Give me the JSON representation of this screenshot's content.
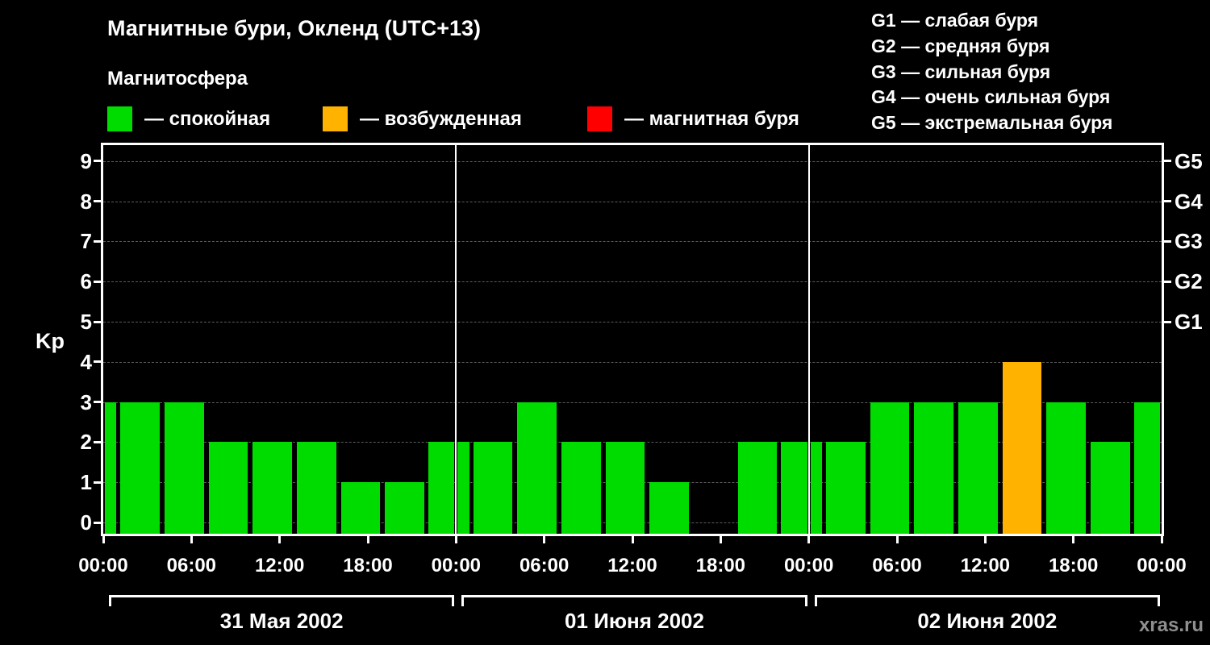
{
  "title": "Магнитные бури, Окленд (UTC+13)",
  "subtitle": "Магнитосфера",
  "legend": {
    "items": [
      {
        "key": "quiet",
        "label": "— спокойная",
        "color": "#00dc00"
      },
      {
        "key": "excited",
        "label": "— возбужденная",
        "color": "#ffb300"
      },
      {
        "key": "storm",
        "label": "— магнитная буря",
        "color": "#ff0000"
      }
    ]
  },
  "g_legend": [
    "G1 — слабая буря",
    "G2 — средняя буря",
    "G3 — сильная буря",
    "G4 — очень сильная буря",
    "G5 — экстремальная буря"
  ],
  "watermark": "xras.ru",
  "chart_data": {
    "type": "bar",
    "title": "Магнитные бури, Окленд (UTC+13)",
    "ylabel": "Kp",
    "ylim": [
      0,
      9.7
    ],
    "yticks": [
      0,
      1,
      2,
      3,
      4,
      5,
      6,
      7,
      8,
      9
    ],
    "grid": true,
    "right_axis": [
      {
        "kp": 5,
        "label": "G1"
      },
      {
        "kp": 6,
        "label": "G2"
      },
      {
        "kp": 7,
        "label": "G3"
      },
      {
        "kp": 8,
        "label": "G4"
      },
      {
        "kp": 9,
        "label": "G5"
      }
    ],
    "x_total_hours": 72,
    "xticks": [
      {
        "hour": 0,
        "label": "00:00"
      },
      {
        "hour": 6,
        "label": "06:00"
      },
      {
        "hour": 12,
        "label": "12:00"
      },
      {
        "hour": 18,
        "label": "18:00"
      },
      {
        "hour": 24,
        "label": "00:00"
      },
      {
        "hour": 30,
        "label": "06:00"
      },
      {
        "hour": 36,
        "label": "12:00"
      },
      {
        "hour": 42,
        "label": "18:00"
      },
      {
        "hour": 48,
        "label": "00:00"
      },
      {
        "hour": 54,
        "label": "06:00"
      },
      {
        "hour": 60,
        "label": "12:00"
      },
      {
        "hour": 66,
        "label": "18:00"
      },
      {
        "hour": 72,
        "label": "00:00"
      }
    ],
    "day_boundaries_hours": [
      24,
      48
    ],
    "days": [
      {
        "label": "31 Мая 2002",
        "start_hour": 0,
        "end_hour": 24
      },
      {
        "label": "01 Июня 2002",
        "start_hour": 24,
        "end_hour": 48
      },
      {
        "label": "02 Июня 2002",
        "start_hour": 48,
        "end_hour": 72
      }
    ],
    "bars": [
      {
        "start_hour": 0,
        "duration_hours": 1,
        "kp": 3
      },
      {
        "start_hour": 1,
        "duration_hours": 3,
        "kp": 3
      },
      {
        "start_hour": 4,
        "duration_hours": 3,
        "kp": 3
      },
      {
        "start_hour": 7,
        "duration_hours": 3,
        "kp": 2
      },
      {
        "start_hour": 10,
        "duration_hours": 3,
        "kp": 2
      },
      {
        "start_hour": 13,
        "duration_hours": 3,
        "kp": 2
      },
      {
        "start_hour": 16,
        "duration_hours": 3,
        "kp": 1
      },
      {
        "start_hour": 19,
        "duration_hours": 3,
        "kp": 1
      },
      {
        "start_hour": 22,
        "duration_hours": 2,
        "kp": 2
      },
      {
        "start_hour": 24,
        "duration_hours": 1,
        "kp": 2
      },
      {
        "start_hour": 25,
        "duration_hours": 3,
        "kp": 2
      },
      {
        "start_hour": 28,
        "duration_hours": 3,
        "kp": 3
      },
      {
        "start_hour": 31,
        "duration_hours": 3,
        "kp": 2
      },
      {
        "start_hour": 34,
        "duration_hours": 3,
        "kp": 2
      },
      {
        "start_hour": 37,
        "duration_hours": 3,
        "kp": 1
      },
      {
        "start_hour": 40,
        "duration_hours": 3,
        "kp": 0
      },
      {
        "start_hour": 43,
        "duration_hours": 3,
        "kp": 2
      },
      {
        "start_hour": 46,
        "duration_hours": 2,
        "kp": 2
      },
      {
        "start_hour": 48,
        "duration_hours": 1,
        "kp": 2
      },
      {
        "start_hour": 49,
        "duration_hours": 3,
        "kp": 2
      },
      {
        "start_hour": 52,
        "duration_hours": 3,
        "kp": 3
      },
      {
        "start_hour": 55,
        "duration_hours": 3,
        "kp": 3
      },
      {
        "start_hour": 58,
        "duration_hours": 3,
        "kp": 3
      },
      {
        "start_hour": 61,
        "duration_hours": 3,
        "kp": 4
      },
      {
        "start_hour": 64,
        "duration_hours": 3,
        "kp": 3
      },
      {
        "start_hour": 67,
        "duration_hours": 3,
        "kp": 2
      },
      {
        "start_hour": 70,
        "duration_hours": 2,
        "kp": 3
      }
    ],
    "colors": {
      "quiet": "#00dc00",
      "excited": "#ffb300",
      "storm": "#ff0000",
      "axis": "#ffffff",
      "grid": "#5c5c5c",
      "background": "#000000"
    }
  }
}
